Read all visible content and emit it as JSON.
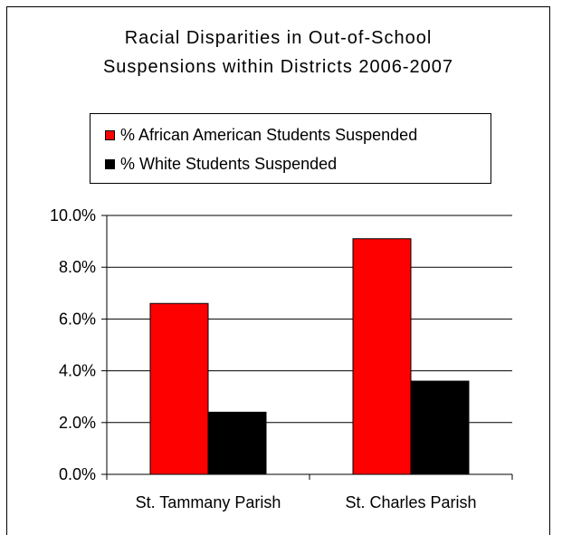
{
  "chart_data": {
    "type": "bar",
    "title_lines": [
      "Racial Disparities in Out-of-School",
      "Suspensions within Districts 2006-2007"
    ],
    "categories": [
      "St. Tammany Parish",
      "St. Charles Parish"
    ],
    "series": [
      {
        "name": "% African American Students Suspended",
        "color": "#ff0000",
        "values": [
          6.6,
          9.1
        ]
      },
      {
        "name": "% White Students Suspended",
        "color": "#000000",
        "values": [
          2.4,
          3.6
        ]
      }
    ],
    "ylim": [
      0,
      10
    ],
    "y_ticks": [
      0,
      2,
      4,
      6,
      8,
      10
    ],
    "y_tick_labels": [
      "0.0%",
      "2.0%",
      "4.0%",
      "6.0%",
      "8.0%",
      "10.0%"
    ],
    "grid": true,
    "legend_position": "top"
  }
}
